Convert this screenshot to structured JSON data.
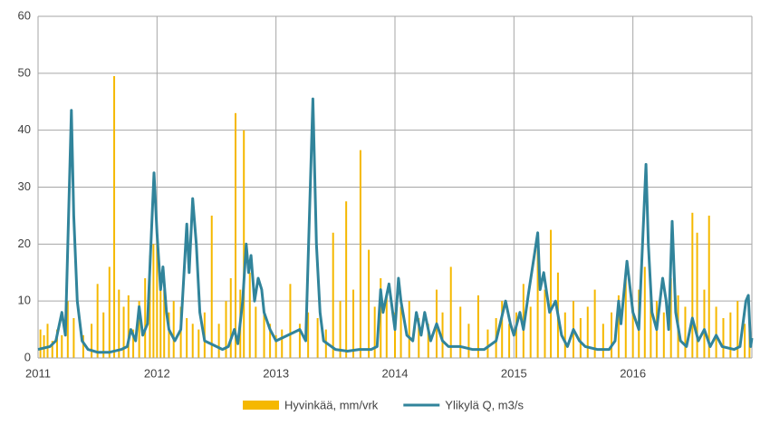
{
  "chart_data": {
    "type": "combo",
    "xlim": [
      2011,
      2017
    ],
    "xticks": [
      2011,
      2012,
      2013,
      2014,
      2015,
      2016
    ],
    "ylim": [
      0,
      60
    ],
    "yticks": [
      0,
      10,
      20,
      30,
      40,
      50,
      60
    ],
    "grid": true,
    "series": [
      {
        "name": "Hyvinkää, mm/vrk",
        "color": "#f5b800",
        "type": "bar",
        "x": [
          2011.02,
          2011.05,
          2011.08,
          2011.12,
          2011.16,
          2011.2,
          2011.25,
          2011.3,
          2011.38,
          2011.45,
          2011.5,
          2011.55,
          2011.6,
          2011.64,
          2011.68,
          2011.72,
          2011.76,
          2011.8,
          2011.85,
          2011.9,
          2011.94,
          2011.97,
          2012.0,
          2012.03,
          2012.06,
          2012.1,
          2012.14,
          2012.2,
          2012.25,
          2012.3,
          2012.35,
          2012.4,
          2012.46,
          2012.52,
          2012.58,
          2012.62,
          2012.66,
          2012.7,
          2012.73,
          2012.78,
          2012.83,
          2012.9,
          2012.95,
          2013.0,
          2013.05,
          2013.12,
          2013.2,
          2013.27,
          2013.35,
          2013.42,
          2013.48,
          2013.54,
          2013.59,
          2013.65,
          2013.71,
          2013.78,
          2013.83,
          2013.88,
          2013.93,
          2014.0,
          2014.05,
          2014.12,
          2014.2,
          2014.28,
          2014.35,
          2014.4,
          2014.47,
          2014.55,
          2014.62,
          2014.7,
          2014.78,
          2014.85,
          2014.9,
          2014.96,
          2015.02,
          2015.08,
          2015.14,
          2015.2,
          2015.26,
          2015.31,
          2015.37,
          2015.43,
          2015.5,
          2015.56,
          2015.62,
          2015.68,
          2015.75,
          2015.82,
          2015.88,
          2015.94,
          2016.0,
          2016.05,
          2016.1,
          2016.15,
          2016.2,
          2016.26,
          2016.32,
          2016.38,
          2016.44,
          2016.5,
          2016.54,
          2016.6,
          2016.64,
          2016.7,
          2016.76,
          2016.82,
          2016.88,
          2016.94,
          2016.98
        ],
        "values": [
          5,
          4,
          6,
          3,
          5,
          4,
          10,
          7,
          4,
          6,
          13,
          8,
          16,
          49.5,
          12,
          9,
          11,
          5,
          10,
          14,
          18,
          20,
          23,
          15,
          12,
          8,
          10,
          9,
          7,
          6,
          5,
          8,
          25,
          6,
          10,
          14,
          43,
          12,
          40,
          15,
          9,
          8,
          6,
          4,
          5,
          13,
          6,
          8,
          7,
          5,
          22,
          10,
          27.5,
          12,
          36.5,
          19,
          9,
          14,
          11,
          8,
          9,
          10,
          7,
          6,
          12,
          8,
          16,
          9,
          6,
          11,
          5,
          7,
          10,
          6,
          8,
          13,
          9,
          19,
          12,
          22.5,
          15,
          8,
          10,
          7,
          9,
          12,
          6,
          8,
          11,
          14,
          9,
          12,
          16,
          13,
          10,
          8,
          14,
          11,
          9,
          25.5,
          22,
          12,
          25,
          9,
          7,
          8,
          10,
          6,
          5
        ]
      },
      {
        "name": "Ylikylä Q, m3/s",
        "color": "#31849b",
        "type": "line",
        "x": [
          2011.0,
          2011.1,
          2011.15,
          2011.2,
          2011.23,
          2011.28,
          2011.3,
          2011.33,
          2011.37,
          2011.42,
          2011.5,
          2011.6,
          2011.7,
          2011.75,
          2011.78,
          2011.82,
          2011.85,
          2011.88,
          2011.92,
          2011.975,
          2012.0,
          2012.03,
          2012.05,
          2012.08,
          2012.1,
          2012.15,
          2012.2,
          2012.25,
          2012.27,
          2012.3,
          2012.33,
          2012.36,
          2012.4,
          2012.5,
          2012.55,
          2012.6,
          2012.65,
          2012.68,
          2012.72,
          2012.75,
          2012.77,
          2012.79,
          2012.82,
          2012.85,
          2012.88,
          2012.9,
          2012.95,
          2013.0,
          2013.1,
          2013.2,
          2013.25,
          2013.31,
          2013.34,
          2013.37,
          2013.4,
          2013.5,
          2013.6,
          2013.7,
          2013.8,
          2013.85,
          2013.88,
          2013.9,
          2013.95,
          2014.0,
          2014.03,
          2014.05,
          2014.1,
          2014.15,
          2014.18,
          2014.22,
          2014.25,
          2014.3,
          2014.35,
          2014.4,
          2014.45,
          2014.55,
          2014.65,
          2014.75,
          2014.85,
          2014.93,
          2014.97,
          2015.0,
          2015.05,
          2015.08,
          2015.12,
          2015.2,
          2015.22,
          2015.25,
          2015.3,
          2015.35,
          2015.4,
          2015.45,
          2015.5,
          2015.55,
          2015.6,
          2015.7,
          2015.8,
          2015.85,
          2015.88,
          2015.9,
          2015.95,
          2016.0,
          2016.05,
          2016.11,
          2016.13,
          2016.16,
          2016.2,
          2016.25,
          2016.28,
          2016.3,
          2016.33,
          2016.36,
          2016.4,
          2016.45,
          2016.5,
          2016.55,
          2016.6,
          2016.65,
          2016.7,
          2016.75,
          2016.85,
          2016.9,
          2016.95,
          2016.97,
          2016.99,
          2017.0
        ],
        "values": [
          1.5,
          2,
          3,
          8,
          4,
          43.5,
          25,
          10,
          3,
          1.5,
          1,
          1,
          1.5,
          2,
          5,
          3,
          9,
          4,
          6,
          32.5,
          22,
          12,
          16,
          8,
          5,
          3,
          5,
          23.5,
          15,
          28,
          20,
          8,
          3,
          2,
          1.5,
          2,
          5,
          2.5,
          10,
          20,
          15,
          18,
          10,
          14,
          12,
          8,
          5,
          3,
          4,
          5,
          3,
          45.5,
          20,
          8,
          3,
          1.5,
          1.2,
          1.5,
          1.5,
          2,
          12,
          8,
          13,
          5,
          14,
          10,
          4,
          3,
          8,
          4,
          8,
          3,
          6,
          3,
          2,
          2,
          1.5,
          1.5,
          3,
          10,
          6,
          4,
          8,
          5,
          11,
          22,
          12,
          15,
          8,
          10,
          4,
          2,
          5,
          3,
          2,
          1.5,
          1.5,
          3,
          10,
          6,
          17,
          8,
          5,
          34,
          20,
          8,
          5,
          14,
          10,
          5,
          24,
          8,
          3,
          2,
          7,
          3,
          5,
          2,
          4,
          2,
          1.5,
          2,
          10,
          11,
          2,
          3.5
        ]
      }
    ]
  }
}
